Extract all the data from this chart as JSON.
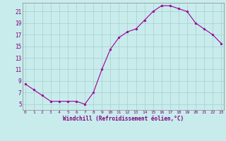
{
  "x": [
    0,
    1,
    2,
    3,
    4,
    5,
    6,
    7,
    8,
    9,
    10,
    11,
    12,
    13,
    14,
    15,
    16,
    17,
    18,
    19,
    20,
    21,
    22,
    23
  ],
  "y": [
    8.5,
    7.5,
    6.5,
    5.5,
    5.5,
    5.5,
    5.5,
    5.0,
    7.0,
    11.0,
    14.5,
    16.5,
    17.5,
    18.0,
    19.5,
    21.0,
    22.0,
    22.0,
    21.5,
    21.0,
    19.0,
    18.0,
    17.0,
    15.5
  ],
  "xlabel": "Windchill (Refroidissement éolien,°C)",
  "yticks": [
    5,
    7,
    9,
    11,
    13,
    15,
    17,
    19,
    21
  ],
  "xticks": [
    0,
    1,
    2,
    3,
    4,
    5,
    6,
    7,
    8,
    9,
    10,
    11,
    12,
    13,
    14,
    15,
    16,
    17,
    18,
    19,
    20,
    21,
    22,
    23
  ],
  "line_color": "#990099",
  "marker": "*",
  "bg_color": "#c8ecec",
  "grid_color": "#aacccc",
  "xlabel_color": "#800080",
  "tick_color": "#800080",
  "xlim_min": -0.3,
  "xlim_max": 23.3,
  "ylim_min": 4.0,
  "ylim_max": 22.5
}
